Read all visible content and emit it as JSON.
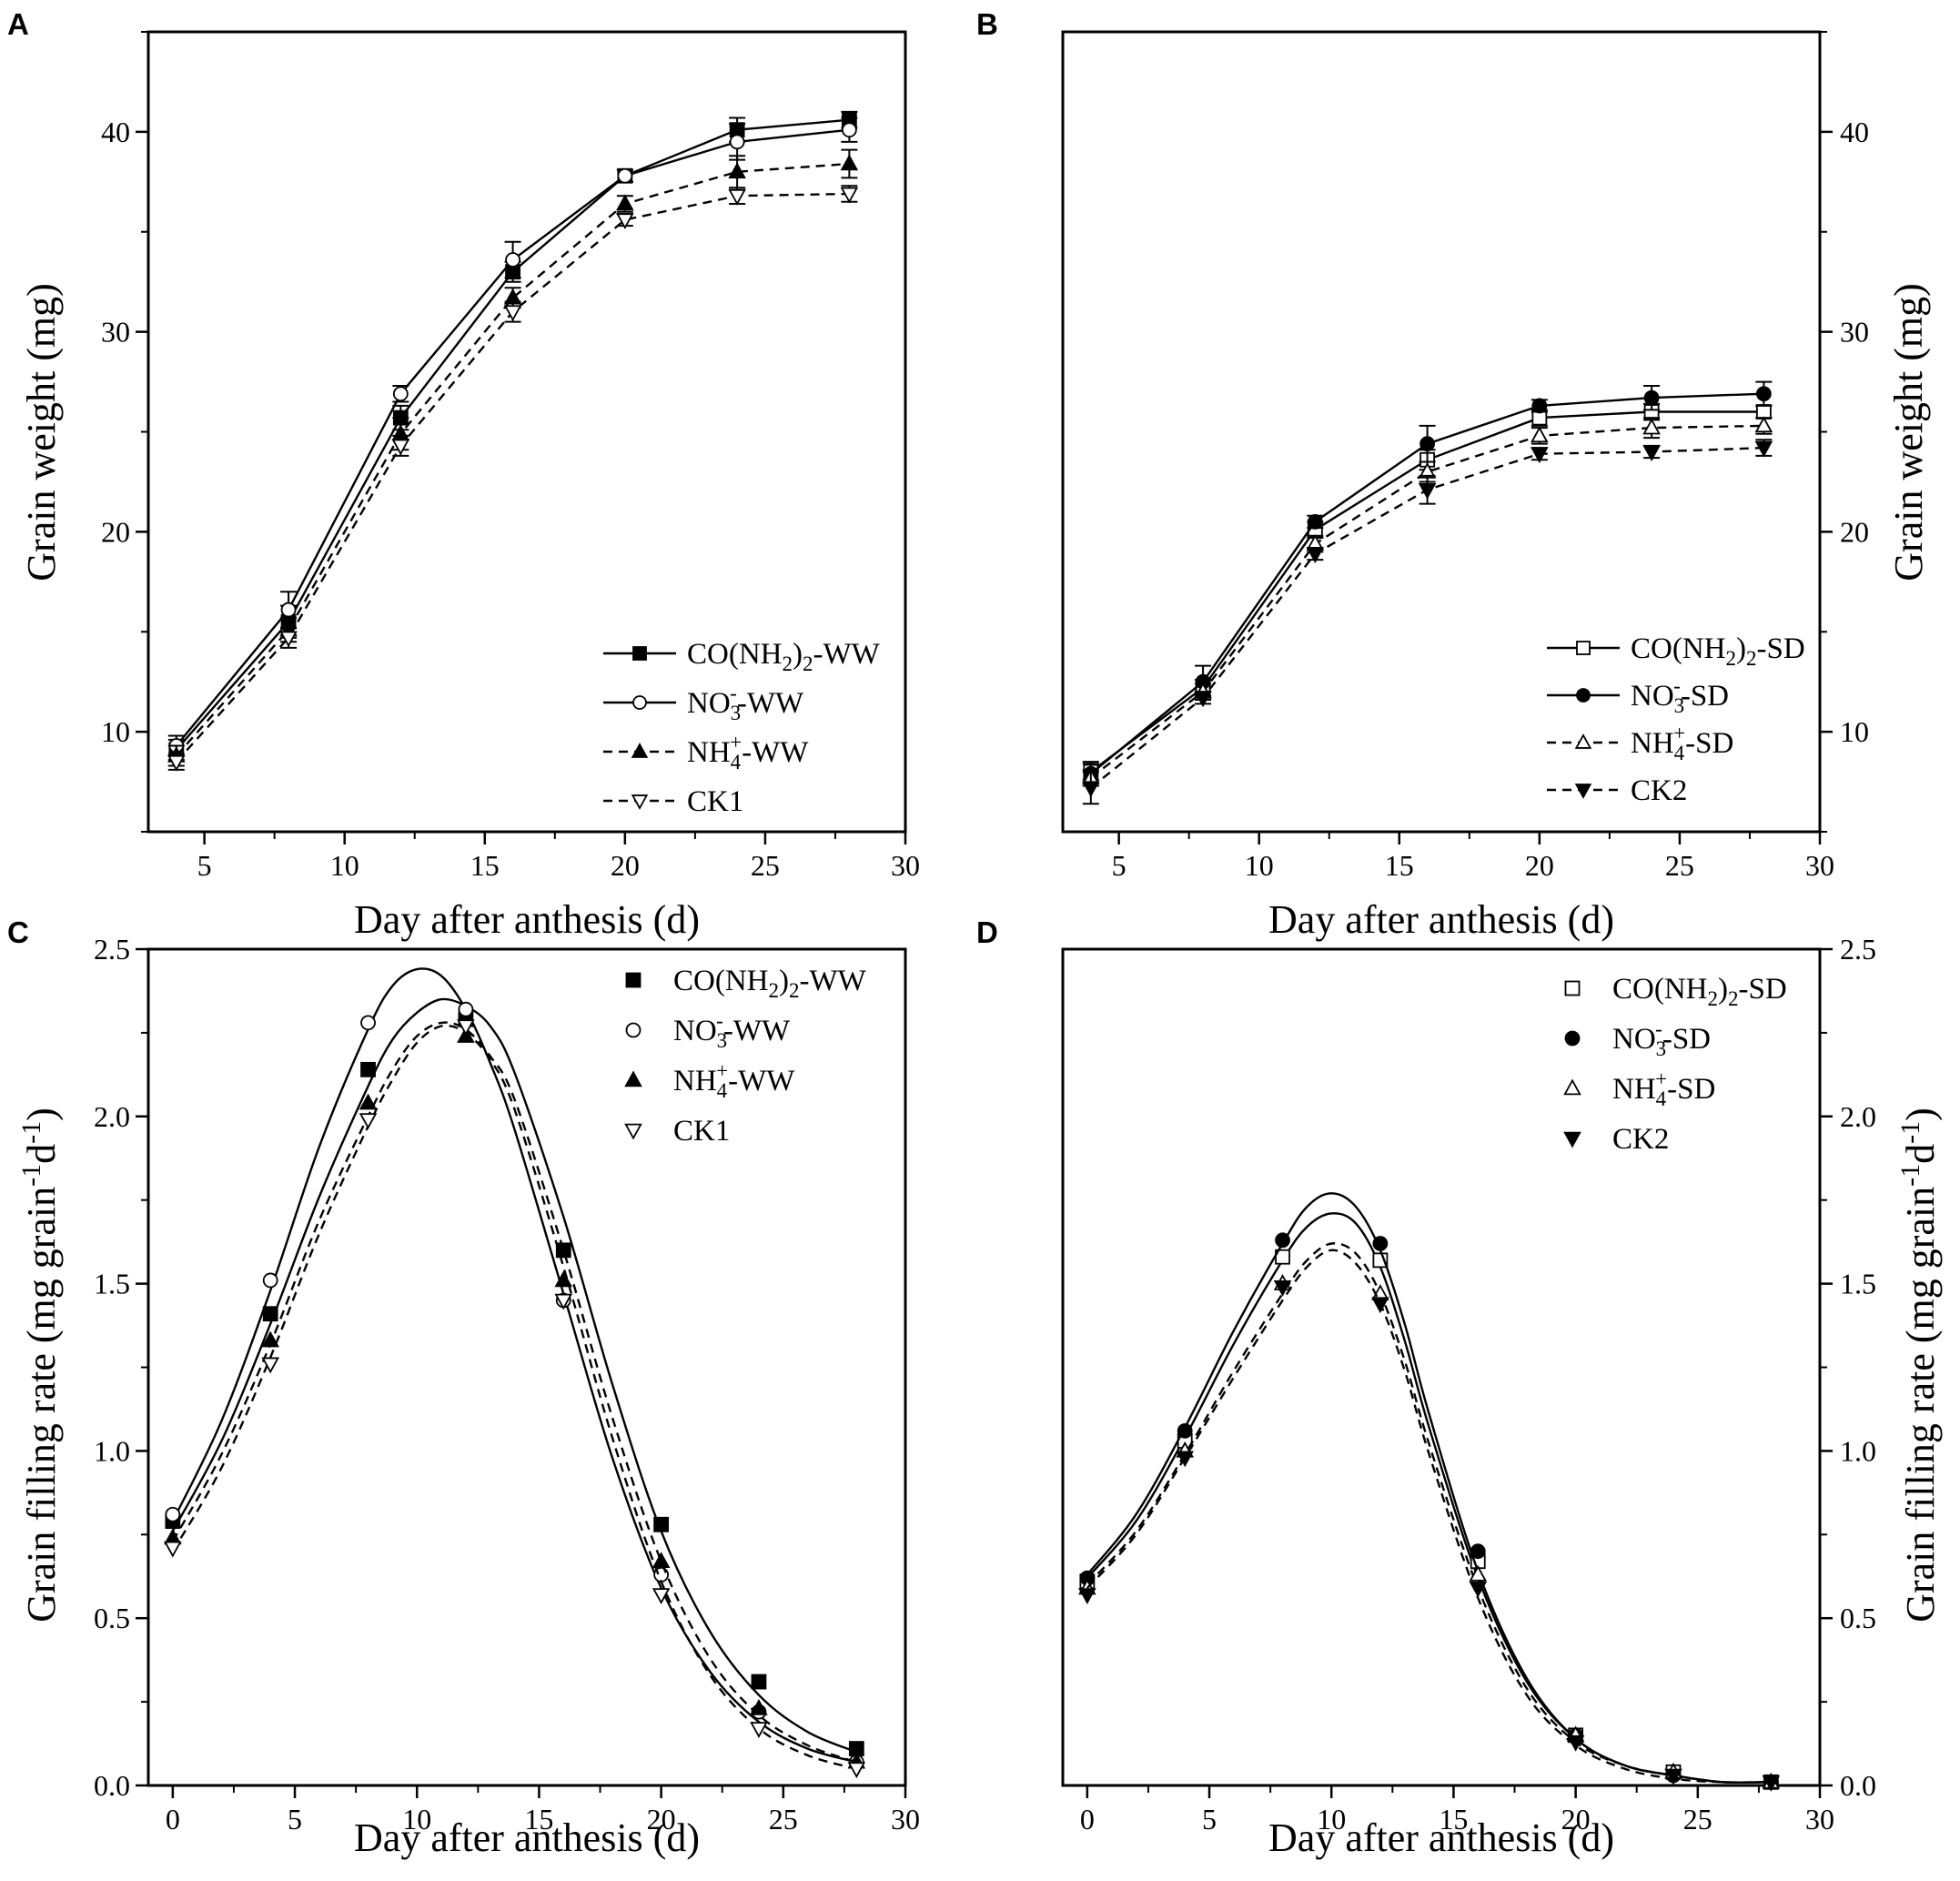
{
  "figure": {
    "panels": {
      "A": {
        "label": "A",
        "xlabel": "Day after anthesis (d)",
        "ylabel": "Grain weight (mg)",
        "x_ticks": [
          "5",
          "10",
          "15",
          "20",
          "25",
          "30"
        ],
        "y_ticks": [
          "10",
          "20",
          "30",
          "40"
        ]
      },
      "B": {
        "label": "B",
        "xlabel": "Day after anthesis (d)",
        "ylabel": "Grain weight (mg)",
        "x_ticks": [
          "5",
          "10",
          "15",
          "20",
          "25",
          "30"
        ],
        "y_ticks": [
          "10",
          "20",
          "30",
          "40"
        ]
      },
      "C": {
        "label": "C",
        "xlabel": "Day after anthesis (d)",
        "ylabel": "Grain filling rate (mg grain-1d-1)",
        "ylabel_parts": [
          "Grain filling rate (mg grain",
          "-1",
          "d",
          "-1",
          ")"
        ],
        "x_ticks": [
          "0",
          "5",
          "10",
          "15",
          "20",
          "25",
          "30"
        ],
        "y_ticks": [
          "0.0",
          "0.5",
          "1.0",
          "1.5",
          "2.0",
          "2.5"
        ]
      },
      "D": {
        "label": "D",
        "xlabel": "Day after anthesis (d)",
        "ylabel": "Grain filling rate (mg grain-1d-1)",
        "ylabel_parts": [
          "Grain filling rate (mg grain",
          "-1",
          "d",
          "-1",
          ")"
        ],
        "x_ticks": [
          "0",
          "5",
          "10",
          "15",
          "20",
          "25",
          "30"
        ],
        "y_ticks": [
          "0.0",
          "0.5",
          "1.0",
          "1.5",
          "2.0",
          "2.5"
        ]
      }
    }
  },
  "chart_data": [
    {
      "panel": "A",
      "type": "line",
      "xlabel": "Day after anthesis (d)",
      "ylabel": "Grain weight (mg)",
      "xlim": [
        3,
        30
      ],
      "ylim": [
        5,
        45
      ],
      "legend": "bottom-right",
      "series": [
        {
          "name": "CO(NH2)2-WW",
          "legend_parts": [
            "CO(NH",
            "2",
            ")",
            "2",
            "-WW"
          ],
          "marker": "square-filled",
          "line": "solid",
          "x": [
            4,
            8,
            12,
            16,
            20,
            24,
            28
          ],
          "y": [
            9.1,
            15.5,
            25.7,
            33.0,
            37.8,
            40.1,
            40.6
          ],
          "err": [
            0.5,
            0.8,
            0.6,
            0.5,
            0.3,
            0.6,
            0.4
          ]
        },
        {
          "name": "NO3--WW",
          "legend_parts": [
            "NO",
            "3",
            "-",
            "-WW"
          ],
          "marker": "circle-open",
          "line": "solid",
          "x": [
            4,
            8,
            12,
            16,
            20,
            24,
            28
          ],
          "y": [
            9.3,
            16.1,
            26.9,
            33.6,
            37.8,
            39.5,
            40.1
          ],
          "err": [
            0.5,
            0.9,
            0.4,
            0.9,
            0.3,
            0.9,
            0.6
          ]
        },
        {
          "name": "NH4+-WW",
          "legend_parts": [
            "NH",
            "4",
            "+",
            "-WW"
          ],
          "marker": "triangle-up-filled",
          "line": "dashed",
          "x": [
            4,
            8,
            12,
            16,
            20,
            24,
            28
          ],
          "y": [
            8.8,
            15.1,
            24.9,
            31.7,
            36.4,
            38.0,
            38.4
          ],
          "err": [
            0.5,
            0.6,
            0.8,
            0.5,
            0.4,
            0.8,
            0.7
          ]
        },
        {
          "name": "CK1",
          "legend_parts": [
            "CK1"
          ],
          "marker": "triangle-down-open",
          "line": "dashed",
          "x": [
            4,
            8,
            12,
            16,
            20,
            24,
            28
          ],
          "y": [
            8.5,
            14.7,
            24.3,
            31.0,
            35.6,
            36.8,
            36.9
          ],
          "err": [
            0.4,
            0.5,
            0.5,
            0.5,
            0.3,
            0.4,
            0.4
          ]
        }
      ]
    },
    {
      "panel": "B",
      "type": "line",
      "xlabel": "Day after anthesis (d)",
      "ylabel": "Grain weight (mg)",
      "xlim": [
        3,
        30
      ],
      "ylim": [
        5,
        45
      ],
      "legend": "bottom-right",
      "series": [
        {
          "name": "CO(NH2)2-SD",
          "legend_parts": [
            "CO(NH",
            "2",
            ")",
            "2",
            "-SD"
          ],
          "marker": "square-open",
          "line": "solid",
          "x": [
            4,
            8,
            12,
            16,
            20,
            24,
            28
          ],
          "y": [
            8.0,
            12.2,
            20.1,
            23.6,
            25.7,
            26.0,
            26.0
          ],
          "err": [
            0.4,
            0.4,
            0.4,
            0.5,
            0.4,
            0.4,
            0.3
          ]
        },
        {
          "name": "NO3--SD",
          "legend_parts": [
            "NO",
            "3",
            "-",
            "-SD"
          ],
          "marker": "circle-filled",
          "line": "solid",
          "x": [
            4,
            8,
            12,
            16,
            20,
            24,
            28
          ],
          "y": [
            7.9,
            12.5,
            20.5,
            24.4,
            26.3,
            26.7,
            26.9
          ],
          "err": [
            0.6,
            0.8,
            0.3,
            0.9,
            0.3,
            0.6,
            0.6
          ]
        },
        {
          "name": "NH4+-SD",
          "legend_parts": [
            "NH",
            "4",
            "+",
            "-SD"
          ],
          "marker": "triangle-up-open",
          "line": "dashed",
          "x": [
            4,
            8,
            12,
            16,
            20,
            24,
            28
          ],
          "y": [
            7.7,
            12.0,
            19.4,
            23.0,
            24.8,
            25.2,
            25.3
          ],
          "err": [
            0.4,
            0.4,
            0.4,
            0.5,
            0.4,
            0.5,
            0.4
          ]
        },
        {
          "name": "CK2",
          "legend_parts": [
            "CK2"
          ],
          "marker": "triangle-down-filled",
          "line": "dashed",
          "x": [
            4,
            8,
            12,
            16,
            20,
            24,
            28
          ],
          "y": [
            7.2,
            11.7,
            18.9,
            22.1,
            23.9,
            24.0,
            24.2
          ],
          "err": [
            0.8,
            0.3,
            0.3,
            0.7,
            0.3,
            0.3,
            0.4
          ]
        }
      ]
    },
    {
      "panel": "C",
      "type": "scatter",
      "xlabel": "Day after anthesis (d)",
      "ylabel": "Grain filling rate (mg grain-1d-1)",
      "xlim": [
        -1,
        30
      ],
      "ylim": [
        0,
        2.5
      ],
      "legend": "top-right",
      "series": [
        {
          "name": "CO(NH2)2-WW",
          "legend_parts": [
            "CO(NH",
            "2",
            ")",
            "2",
            "-WW"
          ],
          "marker": "square-filled",
          "line": "solid",
          "x": [
            0,
            4,
            8,
            12,
            16,
            20,
            24,
            28
          ],
          "y": [
            0.79,
            1.41,
            2.14,
            2.29,
            1.6,
            0.78,
            0.31,
            0.11
          ],
          "fit_x": [
            0,
            2,
            4,
            6,
            8,
            9,
            10,
            11,
            12,
            13,
            14,
            16,
            18,
            20,
            22,
            24,
            26,
            28
          ],
          "fit_y": [
            0.76,
            1.03,
            1.38,
            1.76,
            2.09,
            2.23,
            2.31,
            2.35,
            2.33,
            2.27,
            2.13,
            1.7,
            1.2,
            0.76,
            0.46,
            0.27,
            0.16,
            0.1
          ]
        },
        {
          "name": "NO3--WW",
          "legend_parts": [
            "NO",
            "3",
            "-",
            "-WW"
          ],
          "marker": "circle-open",
          "line": "solid",
          "x": [
            0,
            4,
            8,
            12,
            16,
            20,
            24,
            28
          ],
          "y": [
            0.81,
            1.51,
            2.28,
            2.32,
            1.45,
            0.63,
            0.22,
            0.07
          ],
          "fit_x": [
            0,
            2,
            4,
            6,
            8,
            9,
            10,
            11,
            12,
            13,
            14,
            16,
            18,
            20,
            22,
            24,
            26,
            28
          ],
          "fit_y": [
            0.79,
            1.09,
            1.48,
            1.91,
            2.26,
            2.39,
            2.44,
            2.42,
            2.32,
            2.16,
            1.96,
            1.47,
            0.98,
            0.59,
            0.34,
            0.19,
            0.11,
            0.07
          ]
        },
        {
          "name": "NH4+-WW",
          "legend_parts": [
            "NH",
            "4",
            "+",
            "-WW"
          ],
          "marker": "triangle-up-filled",
          "line": "dashed",
          "x": [
            0,
            4,
            8,
            12,
            16,
            20,
            24,
            28
          ],
          "y": [
            0.74,
            1.33,
            2.04,
            2.24,
            1.51,
            0.67,
            0.23,
            0.07
          ],
          "fit_x": [
            0,
            2,
            4,
            6,
            8,
            9,
            10,
            11,
            12,
            13,
            14,
            16,
            18,
            20,
            22,
            24,
            26,
            28
          ],
          "fit_y": [
            0.73,
            0.99,
            1.32,
            1.69,
            2.0,
            2.14,
            2.24,
            2.28,
            2.26,
            2.18,
            2.05,
            1.6,
            1.1,
            0.67,
            0.38,
            0.21,
            0.12,
            0.07
          ]
        },
        {
          "name": "CK1",
          "legend_parts": [
            "CK1"
          ],
          "marker": "triangle-down-open",
          "line": "dashed",
          "x": [
            0,
            4,
            8,
            12,
            16,
            20,
            24,
            28
          ],
          "y": [
            0.71,
            1.26,
            1.99,
            2.27,
            1.45,
            0.57,
            0.17,
            0.05
          ],
          "fit_x": [
            0,
            2,
            4,
            6,
            8,
            9,
            10,
            11,
            12,
            13,
            14,
            16,
            18,
            20,
            22,
            24,
            26,
            28
          ],
          "fit_y": [
            0.7,
            0.95,
            1.28,
            1.65,
            1.97,
            2.11,
            2.22,
            2.27,
            2.25,
            2.17,
            2.02,
            1.55,
            1.04,
            0.61,
            0.33,
            0.17,
            0.09,
            0.05
          ]
        }
      ]
    },
    {
      "panel": "D",
      "type": "scatter",
      "xlabel": "Day after anthesis (d)",
      "ylabel": "Grain filling rate (mg grain-1d-1)",
      "xlim": [
        -1,
        30
      ],
      "ylim": [
        0,
        2.5
      ],
      "legend": "top-right",
      "series": [
        {
          "name": "CO(NH2)2-SD",
          "legend_parts": [
            "CO(NH",
            "2",
            ")",
            "2",
            "-SD"
          ],
          "marker": "square-open",
          "line": "solid",
          "x": [
            0,
            4,
            8,
            12,
            16,
            20,
            24,
            28
          ],
          "y": [
            0.61,
            1.03,
            1.58,
            1.57,
            0.67,
            0.15,
            0.04,
            0.01
          ],
          "fit_x": [
            0,
            2,
            4,
            6,
            8,
            9,
            10,
            11,
            12,
            13,
            14,
            16,
            18,
            20,
            22,
            24,
            26,
            28
          ],
          "fit_y": [
            0.62,
            0.79,
            1.04,
            1.32,
            1.57,
            1.67,
            1.71,
            1.68,
            1.55,
            1.33,
            1.07,
            0.62,
            0.31,
            0.14,
            0.06,
            0.03,
            0.01,
            0.01
          ]
        },
        {
          "name": "NO3--SD",
          "legend_parts": [
            "NO",
            "3",
            "-",
            "-SD"
          ],
          "marker": "circle-filled",
          "line": "solid",
          "x": [
            0,
            4,
            8,
            12,
            16,
            20,
            24,
            28
          ],
          "y": [
            0.62,
            1.06,
            1.63,
            1.62,
            0.7,
            0.15,
            0.03,
            0.01
          ],
          "fit_x": [
            0,
            2,
            4,
            6,
            8,
            9,
            10,
            11,
            12,
            13,
            14,
            16,
            18,
            20,
            22,
            24,
            26,
            28
          ],
          "fit_y": [
            0.63,
            0.81,
            1.07,
            1.36,
            1.62,
            1.73,
            1.77,
            1.73,
            1.6,
            1.38,
            1.11,
            0.64,
            0.32,
            0.14,
            0.06,
            0.03,
            0.01,
            0.01
          ]
        },
        {
          "name": "NH4+-SD",
          "legend_parts": [
            "NH",
            "4",
            "+",
            "-SD"
          ],
          "marker": "triangle-up-open",
          "line": "dashed",
          "x": [
            0,
            4,
            8,
            12,
            16,
            20,
            24,
            28
          ],
          "y": [
            0.59,
            1.0,
            1.5,
            1.47,
            0.63,
            0.15,
            0.04,
            0.01
          ],
          "fit_x": [
            0,
            2,
            4,
            6,
            8,
            9,
            10,
            11,
            12,
            13,
            14,
            16,
            18,
            20,
            22,
            24,
            26,
            28
          ],
          "fit_y": [
            0.6,
            0.76,
            0.99,
            1.24,
            1.47,
            1.57,
            1.62,
            1.59,
            1.47,
            1.27,
            1.02,
            0.59,
            0.29,
            0.13,
            0.06,
            0.03,
            0.01,
            0.01
          ]
        },
        {
          "name": "CK2",
          "legend_parts": [
            "CK2"
          ],
          "marker": "triangle-down-filled",
          "line": "dashed",
          "x": [
            0,
            4,
            8,
            12,
            16,
            20,
            24,
            28
          ],
          "y": [
            0.57,
            0.98,
            1.49,
            1.44,
            0.59,
            0.13,
            0.03,
            0.01
          ],
          "fit_x": [
            0,
            2,
            4,
            6,
            8,
            9,
            10,
            11,
            12,
            13,
            14,
            16,
            18,
            20,
            22,
            24,
            26,
            28
          ],
          "fit_y": [
            0.59,
            0.75,
            0.98,
            1.22,
            1.45,
            1.55,
            1.6,
            1.56,
            1.44,
            1.24,
            0.99,
            0.56,
            0.27,
            0.12,
            0.05,
            0.02,
            0.01,
            0.01
          ]
        }
      ]
    }
  ]
}
